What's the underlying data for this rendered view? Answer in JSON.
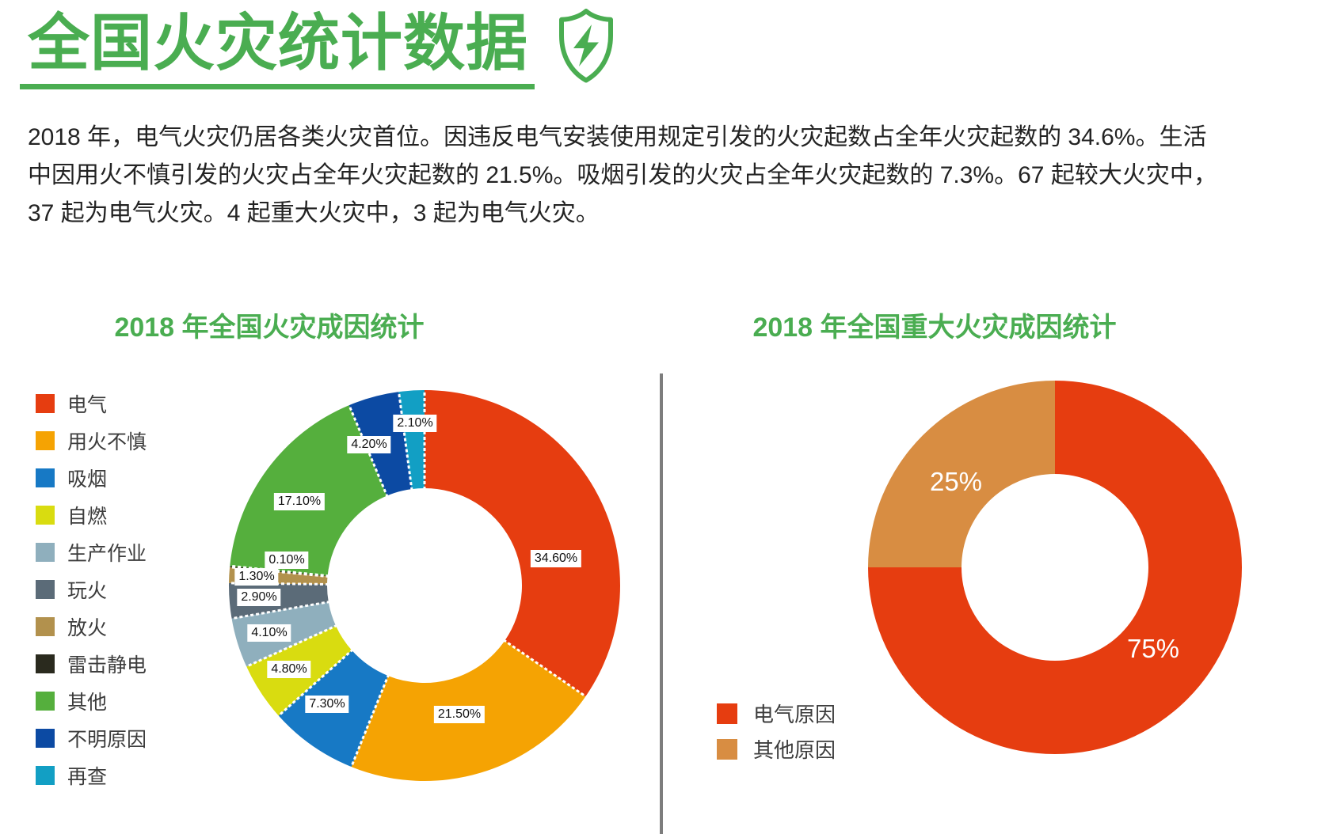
{
  "header": {
    "title": "全国火灾统计数据",
    "icon": "shield-lightning"
  },
  "intro": {
    "lines": [
      "2018 年，电气火灾仍居各类火灾首位。因违反电气安装使用规定引发的火灾起数占全年火灾起数的 34.6%。生活",
      "中因用火不慎引发的火灾占全年火灾起数的 21.5%。吸烟引发的火灾占全年火灾起数的 7.3%。67 起较大火灾中，",
      "37 起为电气火灾。4 起重大火灾中，3 起为电气火灾。"
    ]
  },
  "colors": {
    "accent_green": "#4aad51",
    "divider_gray": "#7d7d7d",
    "body_text": "#232323",
    "label_box_bg": "#ffffff"
  },
  "chart_data": [
    {
      "type": "pie",
      "variant": "donut",
      "title": "2018 年全国火灾成因统计",
      "legend_position": "left",
      "start_angle_deg": 0,
      "direction": "clockwise",
      "unit": "%",
      "categories": [
        "电气",
        "用火不慎",
        "吸烟",
        "自燃",
        "生产作业",
        "玩火",
        "放火",
        "雷击静电",
        "其他",
        "不明原因",
        "再查"
      ],
      "values": [
        34.6,
        21.5,
        7.3,
        4.8,
        4.1,
        2.9,
        1.3,
        0.1,
        17.1,
        4.2,
        2.1
      ],
      "value_labels": [
        "34.60%",
        "21.50%",
        "7.30%",
        "4.80%",
        "4.10%",
        "2.90%",
        "1.30%",
        "0.10%",
        "17.10%",
        "4.20%",
        "2.10%"
      ],
      "colors": [
        "#e63d10",
        "#f5a303",
        "#1779c5",
        "#d9dc10",
        "#8fafbd",
        "#5b6b78",
        "#b2914d",
        "#2a2a1e",
        "#55af3d",
        "#0c4aa3",
        "#129fc4"
      ]
    },
    {
      "type": "pie",
      "variant": "donut",
      "title": "2018 年全国重大火灾成因统计",
      "legend_position": "bottom-left",
      "start_angle_deg": 0,
      "direction": "clockwise",
      "unit": "%",
      "categories": [
        "电气原因",
        "其他原因"
      ],
      "values": [
        75,
        25
      ],
      "value_labels": [
        "75%",
        "25%"
      ],
      "colors": [
        "#e63d10",
        "#d88d42"
      ]
    }
  ]
}
